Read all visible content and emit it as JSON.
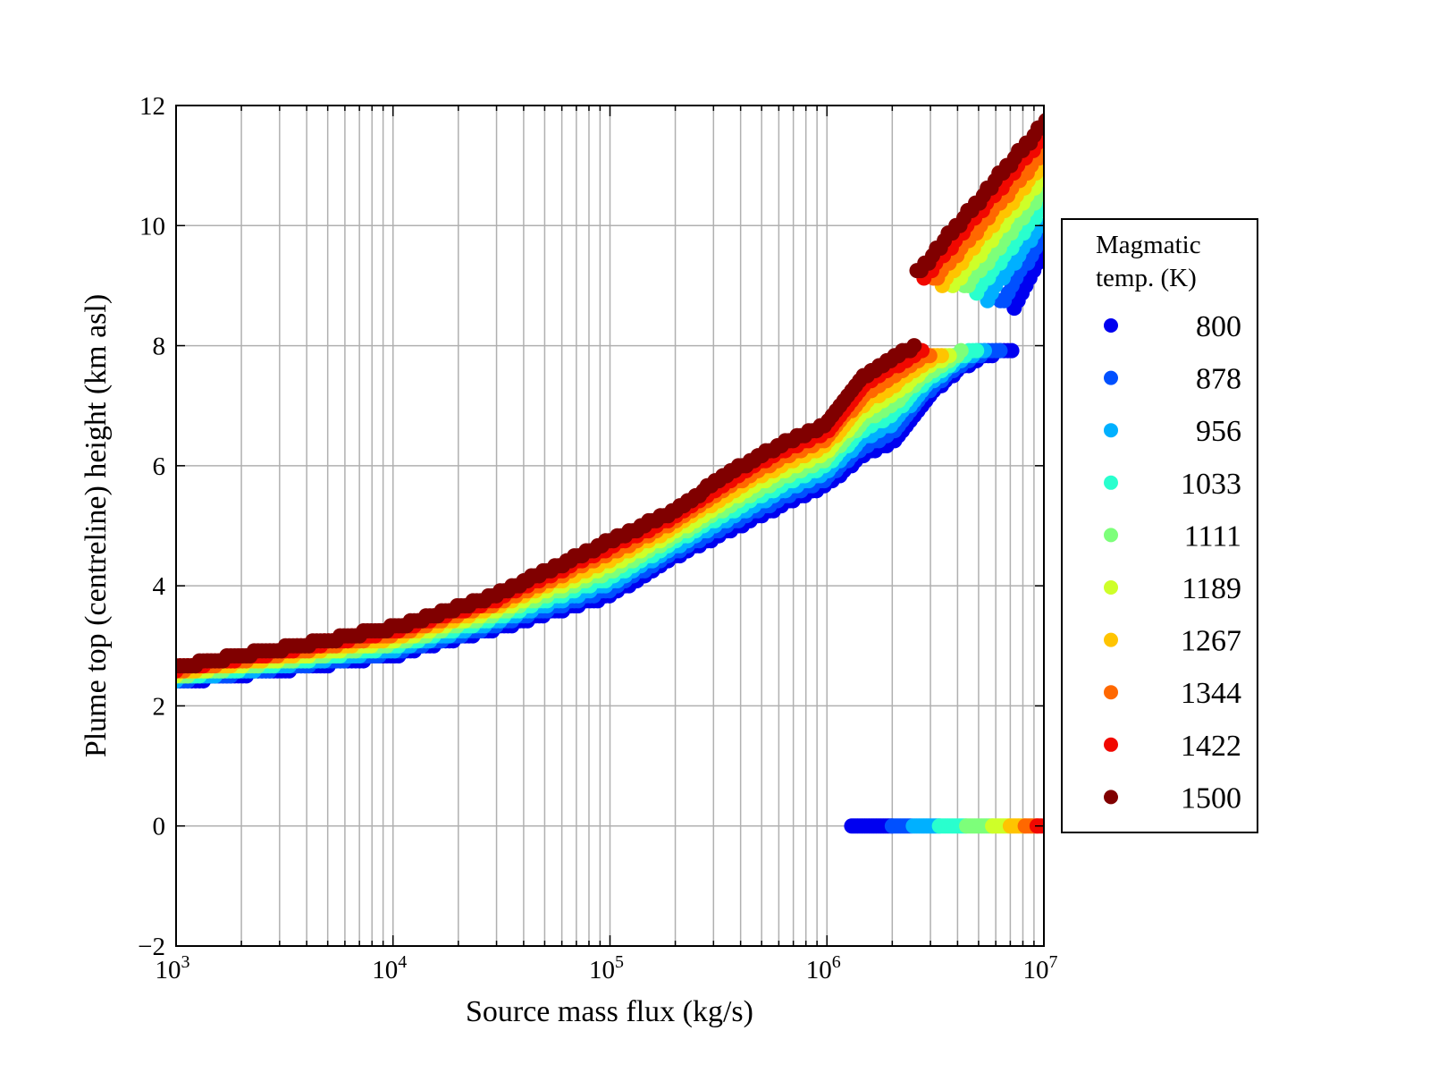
{
  "chart_data": {
    "type": "scatter",
    "title": "",
    "xlabel": "Source mass flux (kg/s)",
    "ylabel": "Plume top (centreline) height (km asl)",
    "xscale": "log",
    "xlim": [
      1000,
      10000000
    ],
    "ylim": [
      -2,
      12
    ],
    "grid": true,
    "x_ticks": [
      {
        "base": "10",
        "exp": "3",
        "value": 1000
      },
      {
        "base": "10",
        "exp": "4",
        "value": 10000
      },
      {
        "base": "10",
        "exp": "5",
        "value": 100000
      },
      {
        "base": "10",
        "exp": "6",
        "value": 1000000
      },
      {
        "base": "10",
        "exp": "7",
        "value": 10000000
      }
    ],
    "y_ticks": [
      {
        "label": "−2",
        "value": -2
      },
      {
        "label": "0",
        "value": 0
      },
      {
        "label": "2",
        "value": 2
      },
      {
        "label": "4",
        "value": 4
      },
      {
        "label": "6",
        "value": 6
      },
      {
        "label": "8",
        "value": 8
      },
      {
        "label": "10",
        "value": 10
      },
      {
        "label": "12",
        "value": 12
      }
    ],
    "legend": {
      "title_line1": "Magmatic",
      "title_line2": "temp. (K)",
      "placement": "outside-right"
    },
    "lowest_temp_main_branch": [
      [
        1000,
        2.4
      ],
      [
        3000,
        2.6
      ],
      [
        10000,
        2.85
      ],
      [
        30000,
        3.3
      ],
      [
        100000,
        3.85
      ],
      [
        200000,
        4.5
      ],
      [
        300000,
        4.8
      ],
      [
        500000,
        5.2
      ],
      [
        1000000,
        5.7
      ],
      [
        1500000,
        6.2
      ],
      [
        2000000,
        6.4
      ],
      [
        3000000,
        7.2
      ],
      [
        4000000,
        7.6
      ],
      [
        5000000,
        7.8
      ],
      [
        7000000,
        7.95
      ]
    ],
    "highest_temp_main_branch": [
      [
        1000,
        2.65
      ],
      [
        3000,
        2.95
      ],
      [
        10000,
        3.3
      ],
      [
        30000,
        3.85
      ],
      [
        100000,
        4.75
      ],
      [
        200000,
        5.25
      ],
      [
        300000,
        5.7
      ],
      [
        500000,
        6.2
      ],
      [
        1000000,
        6.7
      ],
      [
        1500000,
        7.5
      ],
      [
        2000000,
        7.8
      ],
      [
        2600000,
        8.0
      ],
      [
        4000000,
        8.2
      ],
      [
        7000000,
        8.4
      ]
    ],
    "series": [
      {
        "name": "800",
        "color": "#0000f0",
        "jump_flux": 7300000,
        "upper_start": 8.6,
        "upper_end": 9.6,
        "collapse": [
          1300000,
          2000000
        ]
      },
      {
        "name": "878",
        "color": "#0050ff",
        "jump_flux": 6300000,
        "upper_start": 8.7,
        "upper_end": 9.85,
        "collapse": [
          2000000,
          2500000
        ]
      },
      {
        "name": "956",
        "color": "#00b0ff",
        "jump_flux": 5500000,
        "upper_start": 8.8,
        "upper_end": 10.1,
        "collapse": [
          2500000,
          3300000
        ]
      },
      {
        "name": "1033",
        "color": "#29ffce",
        "jump_flux": 4900000,
        "upper_start": 8.9,
        "upper_end": 10.35,
        "collapse": [
          3300000,
          4400000
        ]
      },
      {
        "name": "1111",
        "color": "#7dff7a",
        "jump_flux": 4300000,
        "upper_start": 8.95,
        "upper_end": 10.6,
        "collapse": [
          4400000,
          5800000
        ]
      },
      {
        "name": "1189",
        "color": "#ceff29",
        "jump_flux": 3800000,
        "upper_start": 9.0,
        "upper_end": 10.85,
        "collapse": [
          5800000,
          7000000
        ]
      },
      {
        "name": "1267",
        "color": "#ffc400",
        "jump_flux": 3400000,
        "upper_start": 9.05,
        "upper_end": 11.05,
        "collapse": [
          7000000,
          8200000
        ]
      },
      {
        "name": "1344",
        "color": "#ff6800",
        "jump_flux": 3100000,
        "upper_start": 9.1,
        "upper_end": 11.25,
        "collapse": [
          8200000,
          9300000
        ]
      },
      {
        "name": "1422",
        "color": "#f10800",
        "jump_flux": 2800000,
        "upper_start": 9.15,
        "upper_end": 11.5,
        "collapse": [
          9300000,
          10000000
        ]
      },
      {
        "name": "1500",
        "color": "#800000",
        "jump_flux": 2600000,
        "upper_start": 9.2,
        "upper_end": 11.7,
        "collapse": null
      }
    ]
  }
}
